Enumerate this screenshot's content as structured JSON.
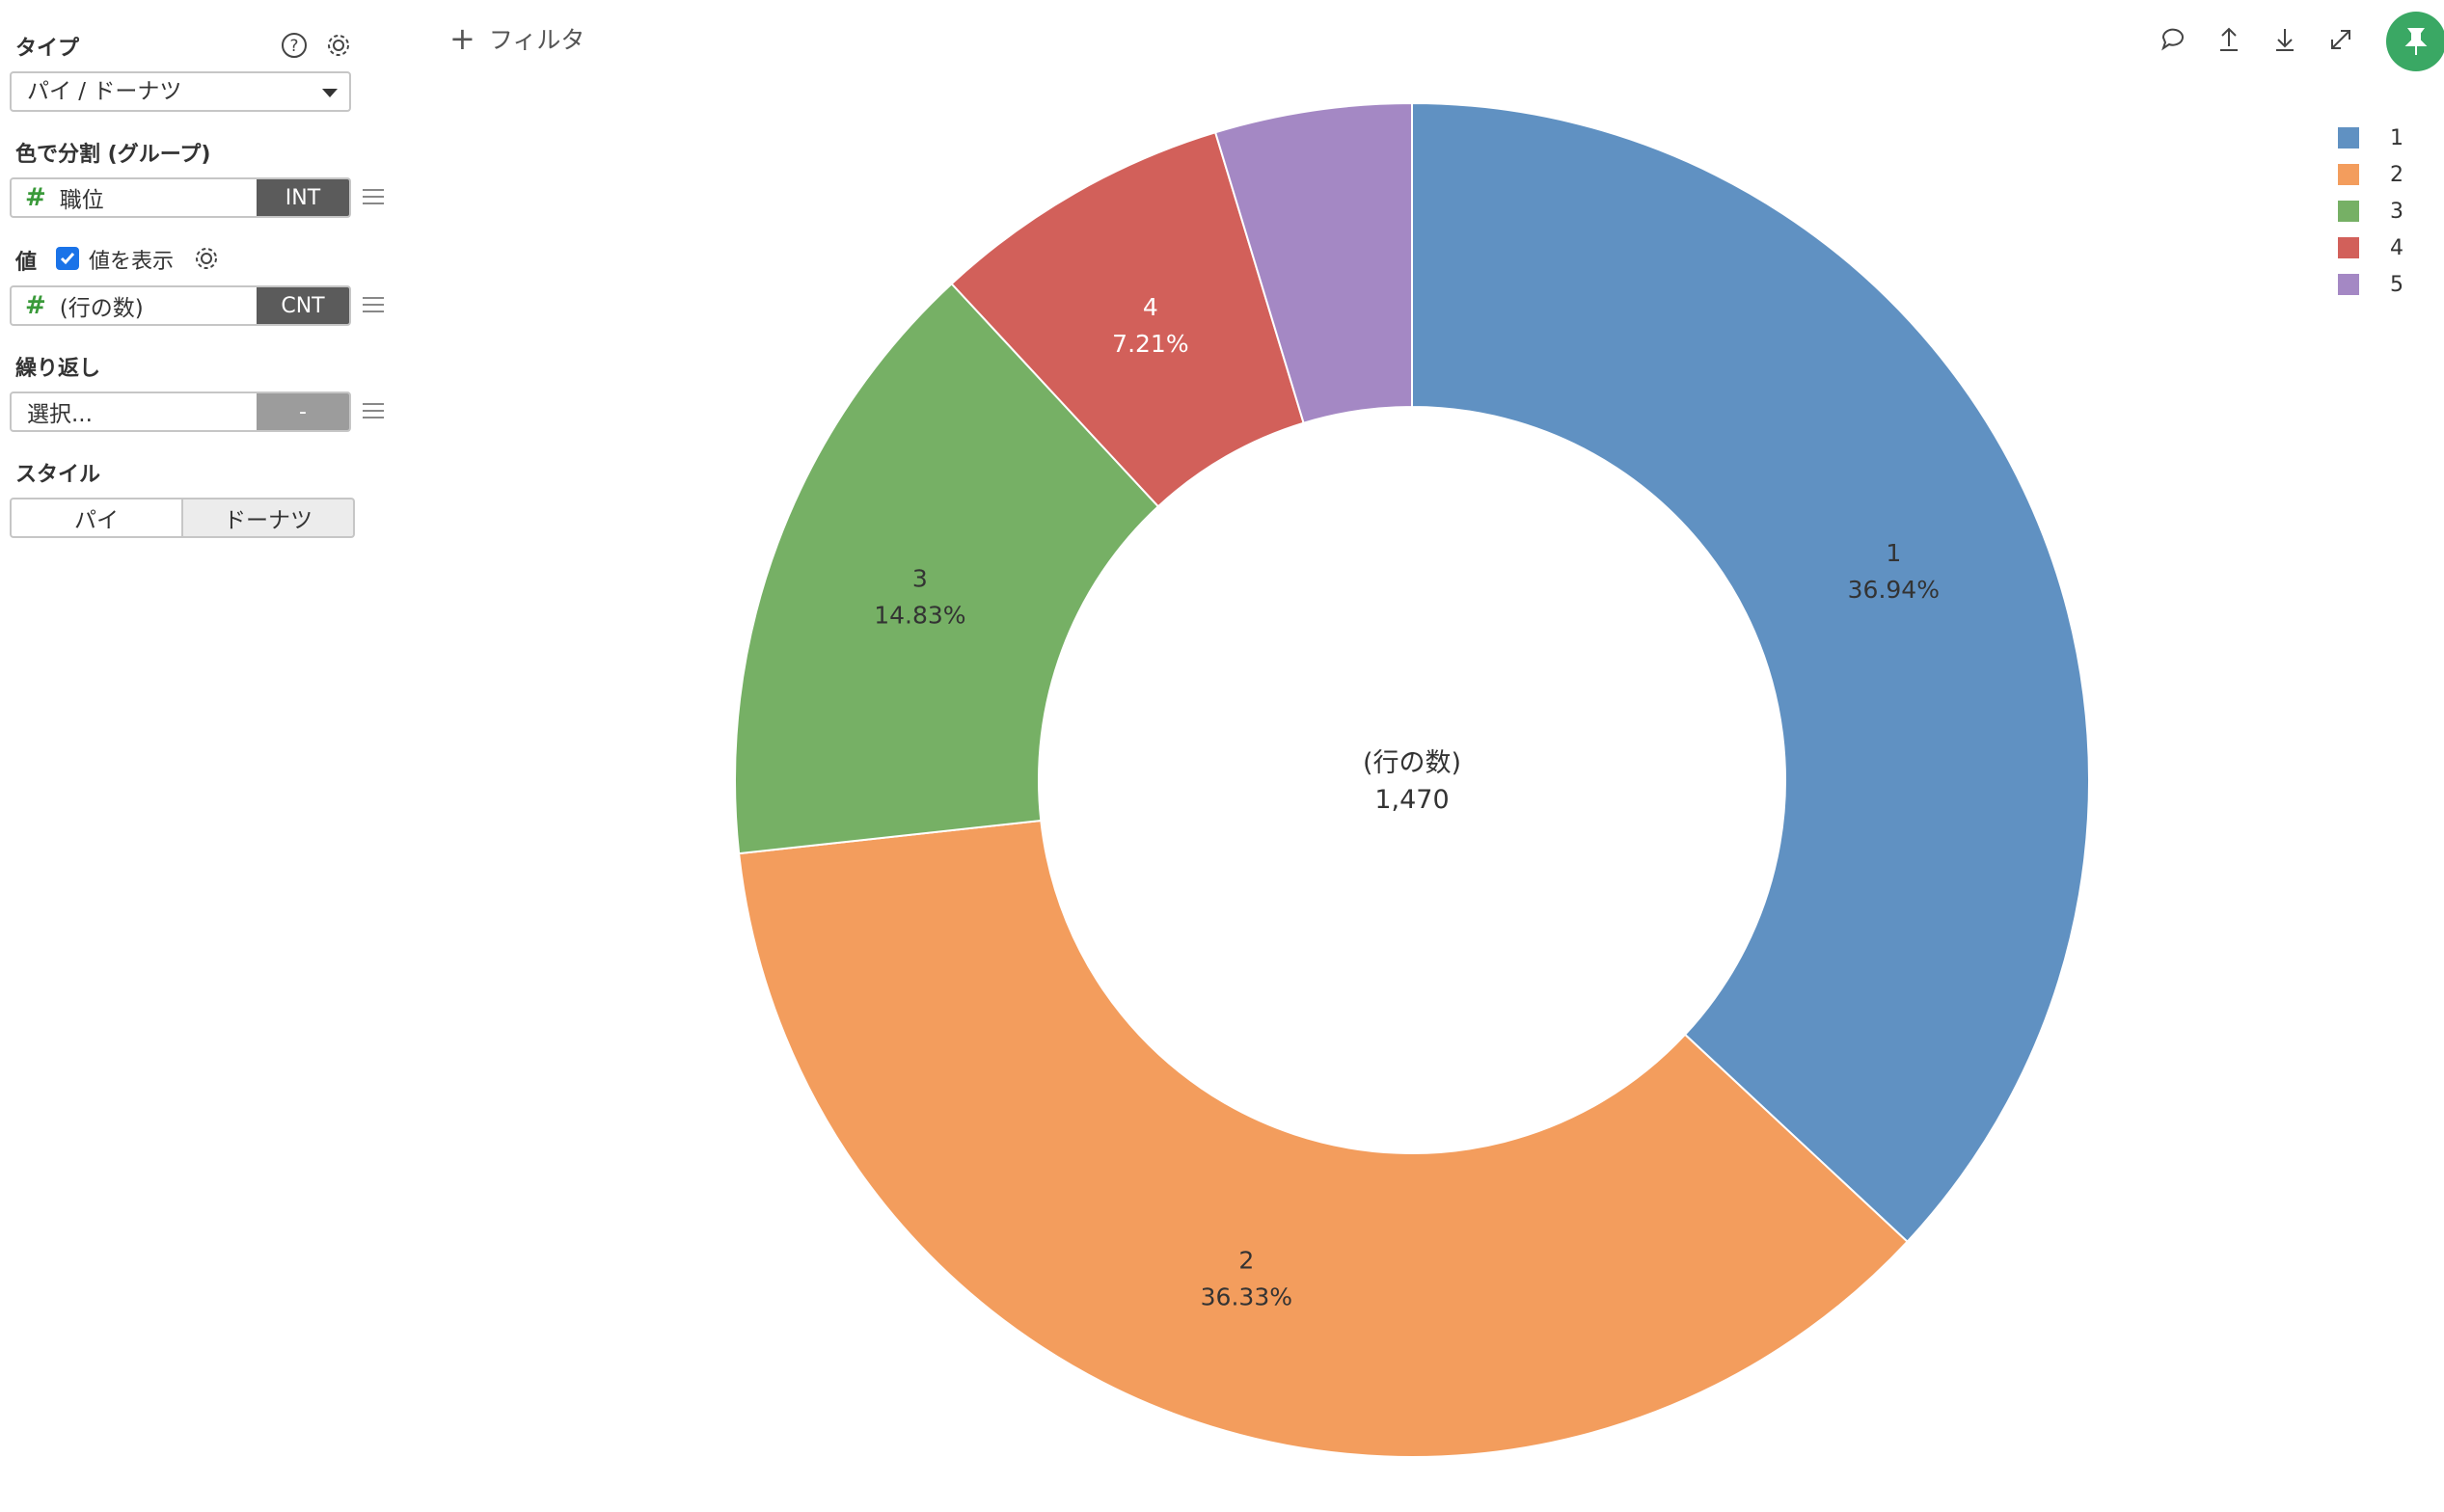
{
  "panel": {
    "type_label": "タイプ",
    "type_value": "パイ / ドーナツ",
    "color_split_label": "色で分割 (グループ)",
    "color_field": {
      "name": "職位",
      "tag": "INT"
    },
    "value_label": "値",
    "show_values_label": "値を表示",
    "value_field": {
      "name": "(行の数)",
      "tag": "CNT"
    },
    "repeat_label": "繰り返し",
    "repeat_field": {
      "name": "選択...",
      "tag": "-"
    },
    "style_label": "スタイル",
    "style_options": [
      "パイ",
      "ドーナツ"
    ],
    "style_selected": "ドーナツ"
  },
  "toolbar": {
    "filter_label": "フィルタ",
    "icons": [
      "comment-icon",
      "upload-icon",
      "download-icon",
      "expand-icon",
      "pin-icon"
    ]
  },
  "colors": {
    "1": "#6091c2",
    "2": "#f39d5d",
    "3": "#76b065",
    "4": "#d2605a",
    "5": "#a488c4",
    "pin": "#3aa864",
    "checkbox": "#1a73e8"
  },
  "chart_data": {
    "type": "pie",
    "style": "donut",
    "total_label": "(行の数)",
    "total_value": "1,470",
    "slices": [
      {
        "label": "1",
        "value": 36.94,
        "display": "36.94%",
        "color": "#6091c2"
      },
      {
        "label": "2",
        "value": 36.33,
        "display": "36.33%",
        "color": "#f39d5d"
      },
      {
        "label": "3",
        "value": 14.83,
        "display": "14.83%",
        "color": "#76b065"
      },
      {
        "label": "4",
        "value": 7.21,
        "display": "7.21%",
        "color": "#d2605a"
      },
      {
        "label": "5",
        "value": 4.69,
        "display": "",
        "color": "#a488c4"
      }
    ],
    "legend_position": "top-right"
  }
}
